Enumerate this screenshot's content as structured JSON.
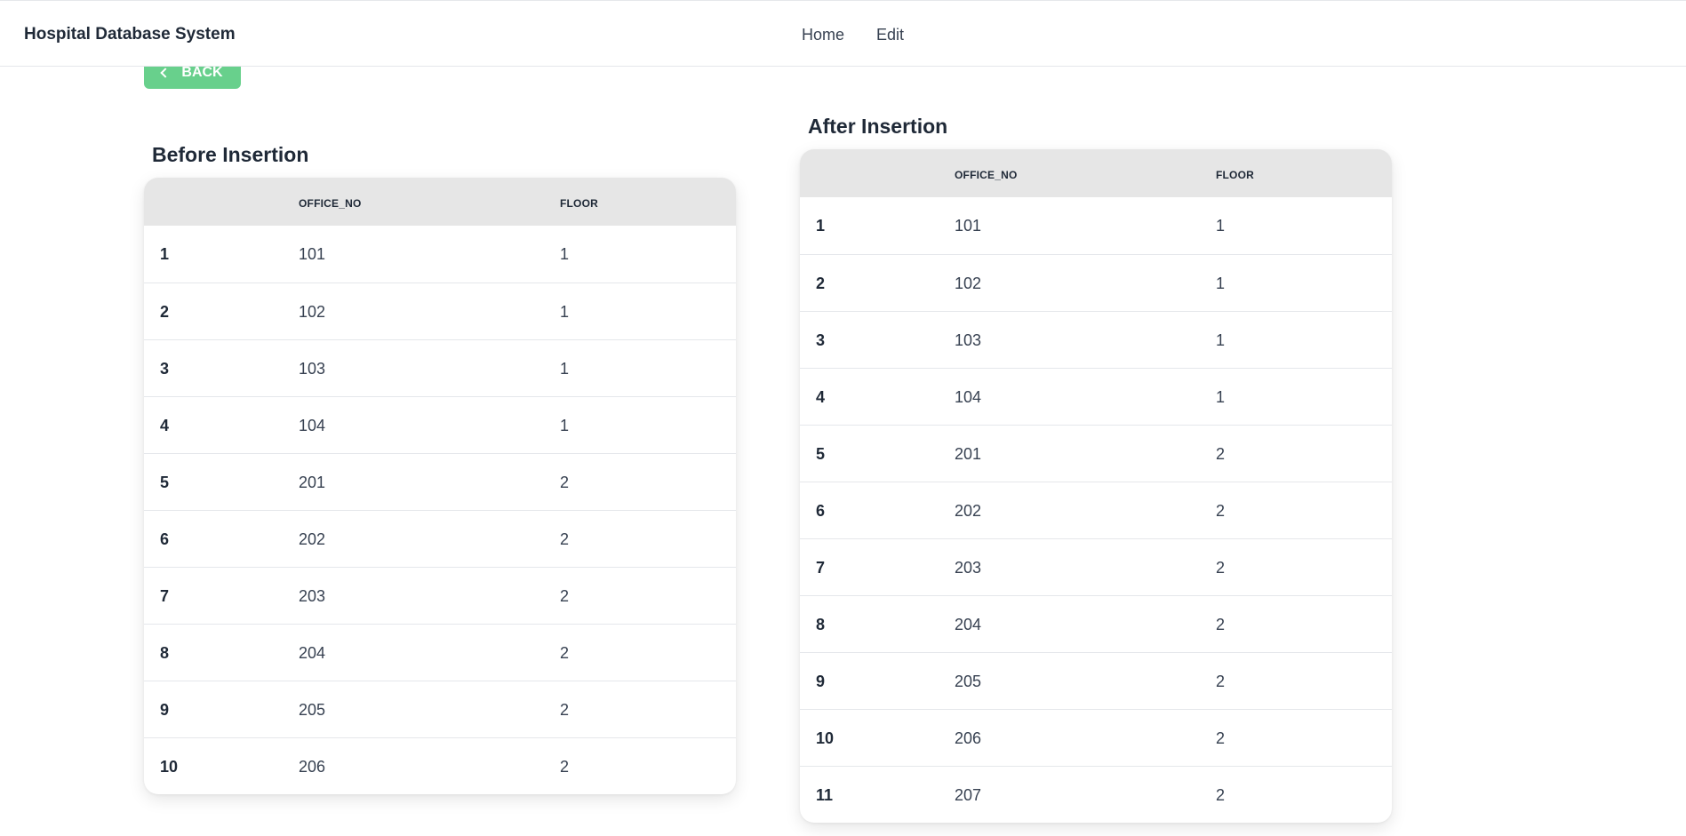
{
  "header": {
    "title": "Hospital Database System",
    "nav": [
      "Home",
      "Edit"
    ]
  },
  "back_button": {
    "label": "BACK"
  },
  "before": {
    "title": "Before Insertion",
    "columns": [
      "",
      "OFFICE_NO",
      "FLOOR"
    ],
    "rows": [
      {
        "idx": "1",
        "office_no": "101",
        "floor": "1"
      },
      {
        "idx": "2",
        "office_no": "102",
        "floor": "1"
      },
      {
        "idx": "3",
        "office_no": "103",
        "floor": "1"
      },
      {
        "idx": "4",
        "office_no": "104",
        "floor": "1"
      },
      {
        "idx": "5",
        "office_no": "201",
        "floor": "2"
      },
      {
        "idx": "6",
        "office_no": "202",
        "floor": "2"
      },
      {
        "idx": "7",
        "office_no": "203",
        "floor": "2"
      },
      {
        "idx": "8",
        "office_no": "204",
        "floor": "2"
      },
      {
        "idx": "9",
        "office_no": "205",
        "floor": "2"
      },
      {
        "idx": "10",
        "office_no": "206",
        "floor": "2"
      }
    ]
  },
  "after": {
    "title": "After Insertion",
    "columns": [
      "",
      "OFFICE_NO",
      "FLOOR"
    ],
    "rows": [
      {
        "idx": "1",
        "office_no": "101",
        "floor": "1"
      },
      {
        "idx": "2",
        "office_no": "102",
        "floor": "1"
      },
      {
        "idx": "3",
        "office_no": "103",
        "floor": "1"
      },
      {
        "idx": "4",
        "office_no": "104",
        "floor": "1"
      },
      {
        "idx": "5",
        "office_no": "201",
        "floor": "2"
      },
      {
        "idx": "6",
        "office_no": "202",
        "floor": "2"
      },
      {
        "idx": "7",
        "office_no": "203",
        "floor": "2"
      },
      {
        "idx": "8",
        "office_no": "204",
        "floor": "2"
      },
      {
        "idx": "9",
        "office_no": "205",
        "floor": "2"
      },
      {
        "idx": "10",
        "office_no": "206",
        "floor": "2"
      },
      {
        "idx": "11",
        "office_no": "207",
        "floor": "2"
      }
    ]
  },
  "colors": {
    "accent_green": "#68d08c",
    "header_bg": "#e6e6e6"
  }
}
